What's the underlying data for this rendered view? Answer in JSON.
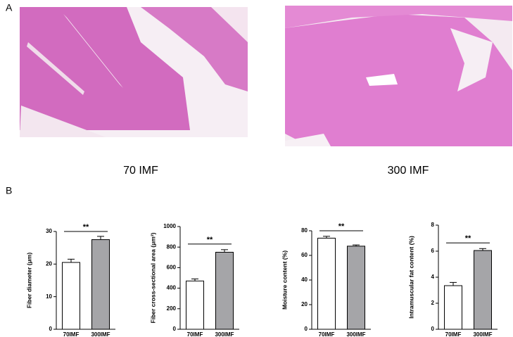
{
  "figure": {
    "panel_a": {
      "label": "A",
      "captions": [
        "70 IMF",
        "300 IMF"
      ]
    },
    "panel_b": {
      "label": "B"
    }
  },
  "chart_data": [
    {
      "type": "bar",
      "ylabel": "Fiber diameter (μm)",
      "categories": [
        "70IMF",
        "300IMF"
      ],
      "values": [
        20.5,
        27.5
      ],
      "errors": [
        1.0,
        1.0
      ],
      "colors": [
        "#ffffff",
        "#a5a5a8"
      ],
      "ylim": [
        0,
        30
      ],
      "yticks": [
        0,
        10,
        20,
        30
      ],
      "annotation": "**"
    },
    {
      "type": "bar",
      "ylabel": "Fiber cross-sectional area (μm²)",
      "categories": [
        "70IMF",
        "300IMF"
      ],
      "values": [
        470,
        750
      ],
      "errors": [
        20,
        25
      ],
      "colors": [
        "#ffffff",
        "#a5a5a8"
      ],
      "ylim": [
        0,
        1000
      ],
      "yticks": [
        0,
        200,
        400,
        600,
        800,
        1000
      ],
      "annotation": "**"
    },
    {
      "type": "bar",
      "ylabel": "Moisture content (%)",
      "categories": [
        "70IMF",
        "300IMF"
      ],
      "values": [
        74,
        67.5
      ],
      "errors": [
        1.5,
        1.0
      ],
      "colors": [
        "#ffffff",
        "#a5a5a8"
      ],
      "ylim": [
        0,
        80
      ],
      "yticks": [
        0,
        20,
        40,
        60,
        80
      ],
      "annotation": "**"
    },
    {
      "type": "bar",
      "ylabel": "Intramuscular fat content (%)",
      "categories": [
        "70IMF",
        "300IMF"
      ],
      "values": [
        3.35,
        6.05
      ],
      "errors": [
        0.25,
        0.15
      ],
      "colors": [
        "#ffffff",
        "#a5a5a8"
      ],
      "ylim": [
        0,
        8
      ],
      "yticks": [
        0,
        2,
        4,
        6,
        8
      ],
      "annotation": "**"
    }
  ]
}
